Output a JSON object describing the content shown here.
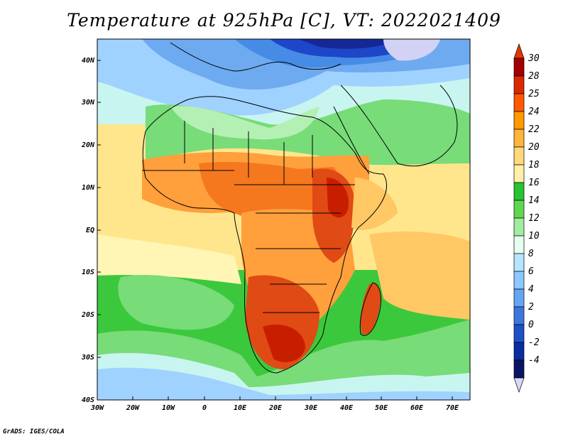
{
  "title": "Temperature at 925hPa [C], VT: 2022021409",
  "credit": "GrADS: IGES/COLA",
  "axes": {
    "lat_ticks": [
      "40N",
      "30N",
      "20N",
      "10N",
      "EQ",
      "10S",
      "20S",
      "30S",
      "40S"
    ],
    "lon_ticks": [
      "30W",
      "20W",
      "10W",
      "0",
      "10E",
      "20E",
      "30E",
      "40E",
      "50E",
      "60E",
      "70E"
    ]
  },
  "colorbar": {
    "labels": [
      "30",
      "28",
      "25",
      "24",
      "22",
      "20",
      "18",
      "16",
      "14",
      "12",
      "10",
      "8",
      "6",
      "4",
      "2",
      "0",
      "-2",
      "-4"
    ],
    "colors": [
      "#a50000",
      "#dc2800",
      "#ff5a00",
      "#ff9a00",
      "#ffb43c",
      "#ffd97a",
      "#fff0a8",
      "#27c332",
      "#5fd850",
      "#a0eca0",
      "#e6fff0",
      "#b4e6ff",
      "#8cc8ff",
      "#64a6f2",
      "#3c78dc",
      "#1e50c8",
      "#0a2da0",
      "#0a1464"
    ],
    "over_color": "#e03800",
    "under_color": "#d8d8f8"
  },
  "field_colors": {
    "very_hot": "#c81e00",
    "hot": "#e04a14",
    "warm_orange": "#f5781e",
    "orange": "#ffa03c",
    "light_orange": "#ffc864",
    "yellow": "#ffe68c",
    "pale_yellow": "#fff5b4",
    "green": "#3cc83c",
    "light_green": "#78dc78",
    "pale_green": "#b4f0b4",
    "cyan": "#c8f5f0",
    "light_blue": "#a0d2ff",
    "blue": "#6eaaf0",
    "mid_blue": "#468ce6",
    "dark_blue": "#1e46c8",
    "navy": "#142896",
    "lavender": "#d2d2f5"
  }
}
